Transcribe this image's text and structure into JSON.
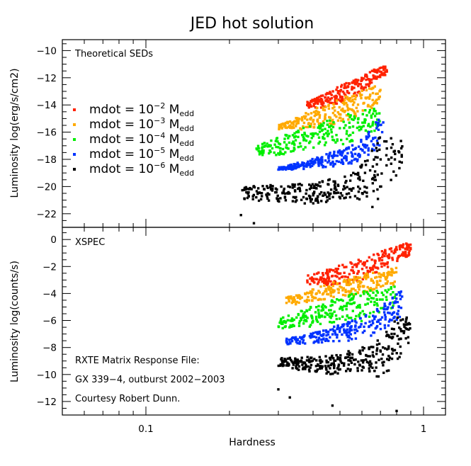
{
  "chart_data": [
    {
      "type": "scatter",
      "title": "JED hot solution",
      "xlabel": "",
      "ylabel": "Luminosity log(erg/s/cm2)",
      "xscale": "log",
      "xlim": [
        0.05,
        1.2
      ],
      "ylim": [
        -23,
        -9.2
      ],
      "yticks": [
        -22,
        -20,
        -18,
        -16,
        -14,
        -12,
        -10
      ],
      "annotation": "Theoretical SEDs",
      "legend": {
        "placement": "center-left",
        "entries": [
          {
            "prefix": "mdot = 10",
            "exp": "−2",
            "unit": "M",
            "sub": "edd",
            "color": "#ff2200"
          },
          {
            "prefix": "mdot = 10",
            "exp": "−3",
            "unit": "M",
            "sub": "edd",
            "color": "#ffaa00"
          },
          {
            "prefix": "mdot = 10",
            "exp": "−4",
            "unit": "M",
            "sub": "edd",
            "color": "#00ee00"
          },
          {
            "prefix": "mdot = 10",
            "exp": "−5",
            "unit": "M",
            "sub": "edd",
            "color": "#0033ff"
          },
          {
            "prefix": "mdot = 10",
            "exp": "−6",
            "unit": "M",
            "sub": "edd",
            "color": "#000000"
          }
        ]
      },
      "series": [
        {
          "color": "#ff2200",
          "h_range": [
            0.38,
            0.74
          ],
          "hi_curve": [
            [
              0.38,
              -13.8
            ],
            [
              0.5,
              -12.6
            ],
            [
              0.62,
              -11.7
            ],
            [
              0.74,
              -10.9
            ]
          ],
          "lo_curve": [
            [
              0.45,
              -14.2
            ],
            [
              0.55,
              -13.6
            ],
            [
              0.65,
              -12.6
            ],
            [
              0.72,
              -11.8
            ]
          ],
          "count": 230
        },
        {
          "color": "#ffaa00",
          "h_range": [
            0.3,
            0.7
          ],
          "hi_curve": [
            [
              0.3,
              -15.5
            ],
            [
              0.42,
              -14.1
            ],
            [
              0.55,
              -13.2
            ],
            [
              0.7,
              -12.4
            ]
          ],
          "lo_curve": [
            [
              0.38,
              -15.8
            ],
            [
              0.5,
              -15.3
            ],
            [
              0.62,
              -14.6
            ],
            [
              0.7,
              -13.8
            ]
          ],
          "count": 230
        },
        {
          "color": "#00ee00",
          "h_range": [
            0.25,
            0.7
          ],
          "hi_curve": [
            [
              0.25,
              -17.0
            ],
            [
              0.35,
              -15.8
            ],
            [
              0.5,
              -14.8
            ],
            [
              0.7,
              -14.0
            ]
          ],
          "lo_curve": [
            [
              0.3,
              -17.7
            ],
            [
              0.42,
              -17.3
            ],
            [
              0.55,
              -16.8
            ],
            [
              0.7,
              -15.8
            ]
          ],
          "count": 230
        },
        {
          "color": "#0033ff",
          "h_range": [
            0.3,
            0.72
          ],
          "hi_curve": [
            [
              0.3,
              -18.6
            ],
            [
              0.45,
              -17.6
            ],
            [
              0.6,
              -16.5
            ],
            [
              0.72,
              -14.2
            ]
          ],
          "lo_curve": [
            [
              0.3,
              -18.8
            ],
            [
              0.45,
              -18.6
            ],
            [
              0.58,
              -18.3
            ],
            [
              0.72,
              -16.8
            ]
          ],
          "count": 230
        },
        {
          "color": "#000000",
          "h_range": [
            0.22,
            0.84
          ],
          "hi_curve": [
            [
              0.22,
              -20.0
            ],
            [
              0.4,
              -19.7
            ],
            [
              0.58,
              -18.8
            ],
            [
              0.7,
              -16.2
            ],
            [
              0.84,
              -16.5
            ]
          ],
          "lo_curve": [
            [
              0.22,
              -21.0
            ],
            [
              0.4,
              -21.3
            ],
            [
              0.55,
              -20.8
            ],
            [
              0.65,
              -21.7
            ],
            [
              0.84,
              -18.5
            ]
          ],
          "count": 300
        }
      ],
      "outliers": [
        [
          0.22,
          -22.1
        ],
        [
          0.245,
          -22.7
        ]
      ]
    },
    {
      "type": "scatter",
      "title": "",
      "xlabel": "Hardness",
      "ylabel": "Luminosity log(counts/s)",
      "xscale": "log",
      "xlim": [
        0.05,
        1.2
      ],
      "ylim": [
        -13,
        0.9
      ],
      "yticks": [
        -12,
        -10,
        -8,
        -6,
        -4,
        -2,
        0
      ],
      "xtick_labels": [
        {
          "value": 0.1,
          "label": "0.1"
        },
        {
          "value": 1,
          "label": "1"
        }
      ],
      "annotation": "XSPEC",
      "notes": [
        "RXTE Matrix Response File:",
        "GX 339−4, outburst 2002−2003",
        "Courtesy Robert Dunn."
      ],
      "series": [
        {
          "color": "#ff2200",
          "h_range": [
            0.38,
            0.9
          ],
          "hi_curve": [
            [
              0.38,
              -2.6
            ],
            [
              0.5,
              -1.9
            ],
            [
              0.65,
              -1.1
            ],
            [
              0.9,
              -0.1
            ]
          ],
          "lo_curve": [
            [
              0.48,
              -3.4
            ],
            [
              0.6,
              -3.0
            ],
            [
              0.72,
              -2.2
            ],
            [
              0.9,
              -1.1
            ]
          ],
          "count": 230
        },
        {
          "color": "#ffaa00",
          "h_range": [
            0.32,
            0.8
          ],
          "hi_curve": [
            [
              0.32,
              -4.3
            ],
            [
              0.45,
              -3.3
            ],
            [
              0.6,
              -2.6
            ],
            [
              0.8,
              -2.0
            ]
          ],
          "lo_curve": [
            [
              0.35,
              -4.8
            ],
            [
              0.5,
              -4.3
            ],
            [
              0.65,
              -3.9
            ],
            [
              0.8,
              -3.3
            ]
          ],
          "count": 230
        },
        {
          "color": "#00ee00",
          "h_range": [
            0.3,
            0.8
          ],
          "hi_curve": [
            [
              0.3,
              -5.9
            ],
            [
              0.4,
              -4.9
            ],
            [
              0.55,
              -4.0
            ],
            [
              0.8,
              -3.3
            ]
          ],
          "lo_curve": [
            [
              0.3,
              -6.6
            ],
            [
              0.45,
              -6.4
            ],
            [
              0.6,
              -6.1
            ],
            [
              0.8,
              -4.9
            ]
          ],
          "count": 230
        },
        {
          "color": "#0033ff",
          "h_range": [
            0.32,
            0.85
          ],
          "hi_curve": [
            [
              0.32,
              -7.3
            ],
            [
              0.45,
              -6.6
            ],
            [
              0.62,
              -5.6
            ],
            [
              0.85,
              -3.6
            ]
          ],
          "lo_curve": [
            [
              0.32,
              -7.8
            ],
            [
              0.45,
              -7.6
            ],
            [
              0.62,
              -7.4
            ],
            [
              0.85,
              -5.6
            ]
          ],
          "count": 230
        },
        {
          "color": "#000000",
          "h_range": [
            0.3,
            0.9
          ],
          "hi_curve": [
            [
              0.3,
              -8.8
            ],
            [
              0.45,
              -8.6
            ],
            [
              0.65,
              -7.8
            ],
            [
              0.8,
              -5.6
            ],
            [
              0.9,
              -5.6
            ]
          ],
          "lo_curve": [
            [
              0.3,
              -9.4
            ],
            [
              0.45,
              -10.1
            ],
            [
              0.6,
              -9.8
            ],
            [
              0.7,
              -10.6
            ],
            [
              0.9,
              -7.6
            ]
          ],
          "count": 300
        }
      ],
      "outliers": [
        [
          0.3,
          -11.1
        ],
        [
          0.33,
          -11.7
        ],
        [
          0.47,
          -12.3
        ],
        [
          0.8,
          -12.7
        ]
      ]
    }
  ]
}
